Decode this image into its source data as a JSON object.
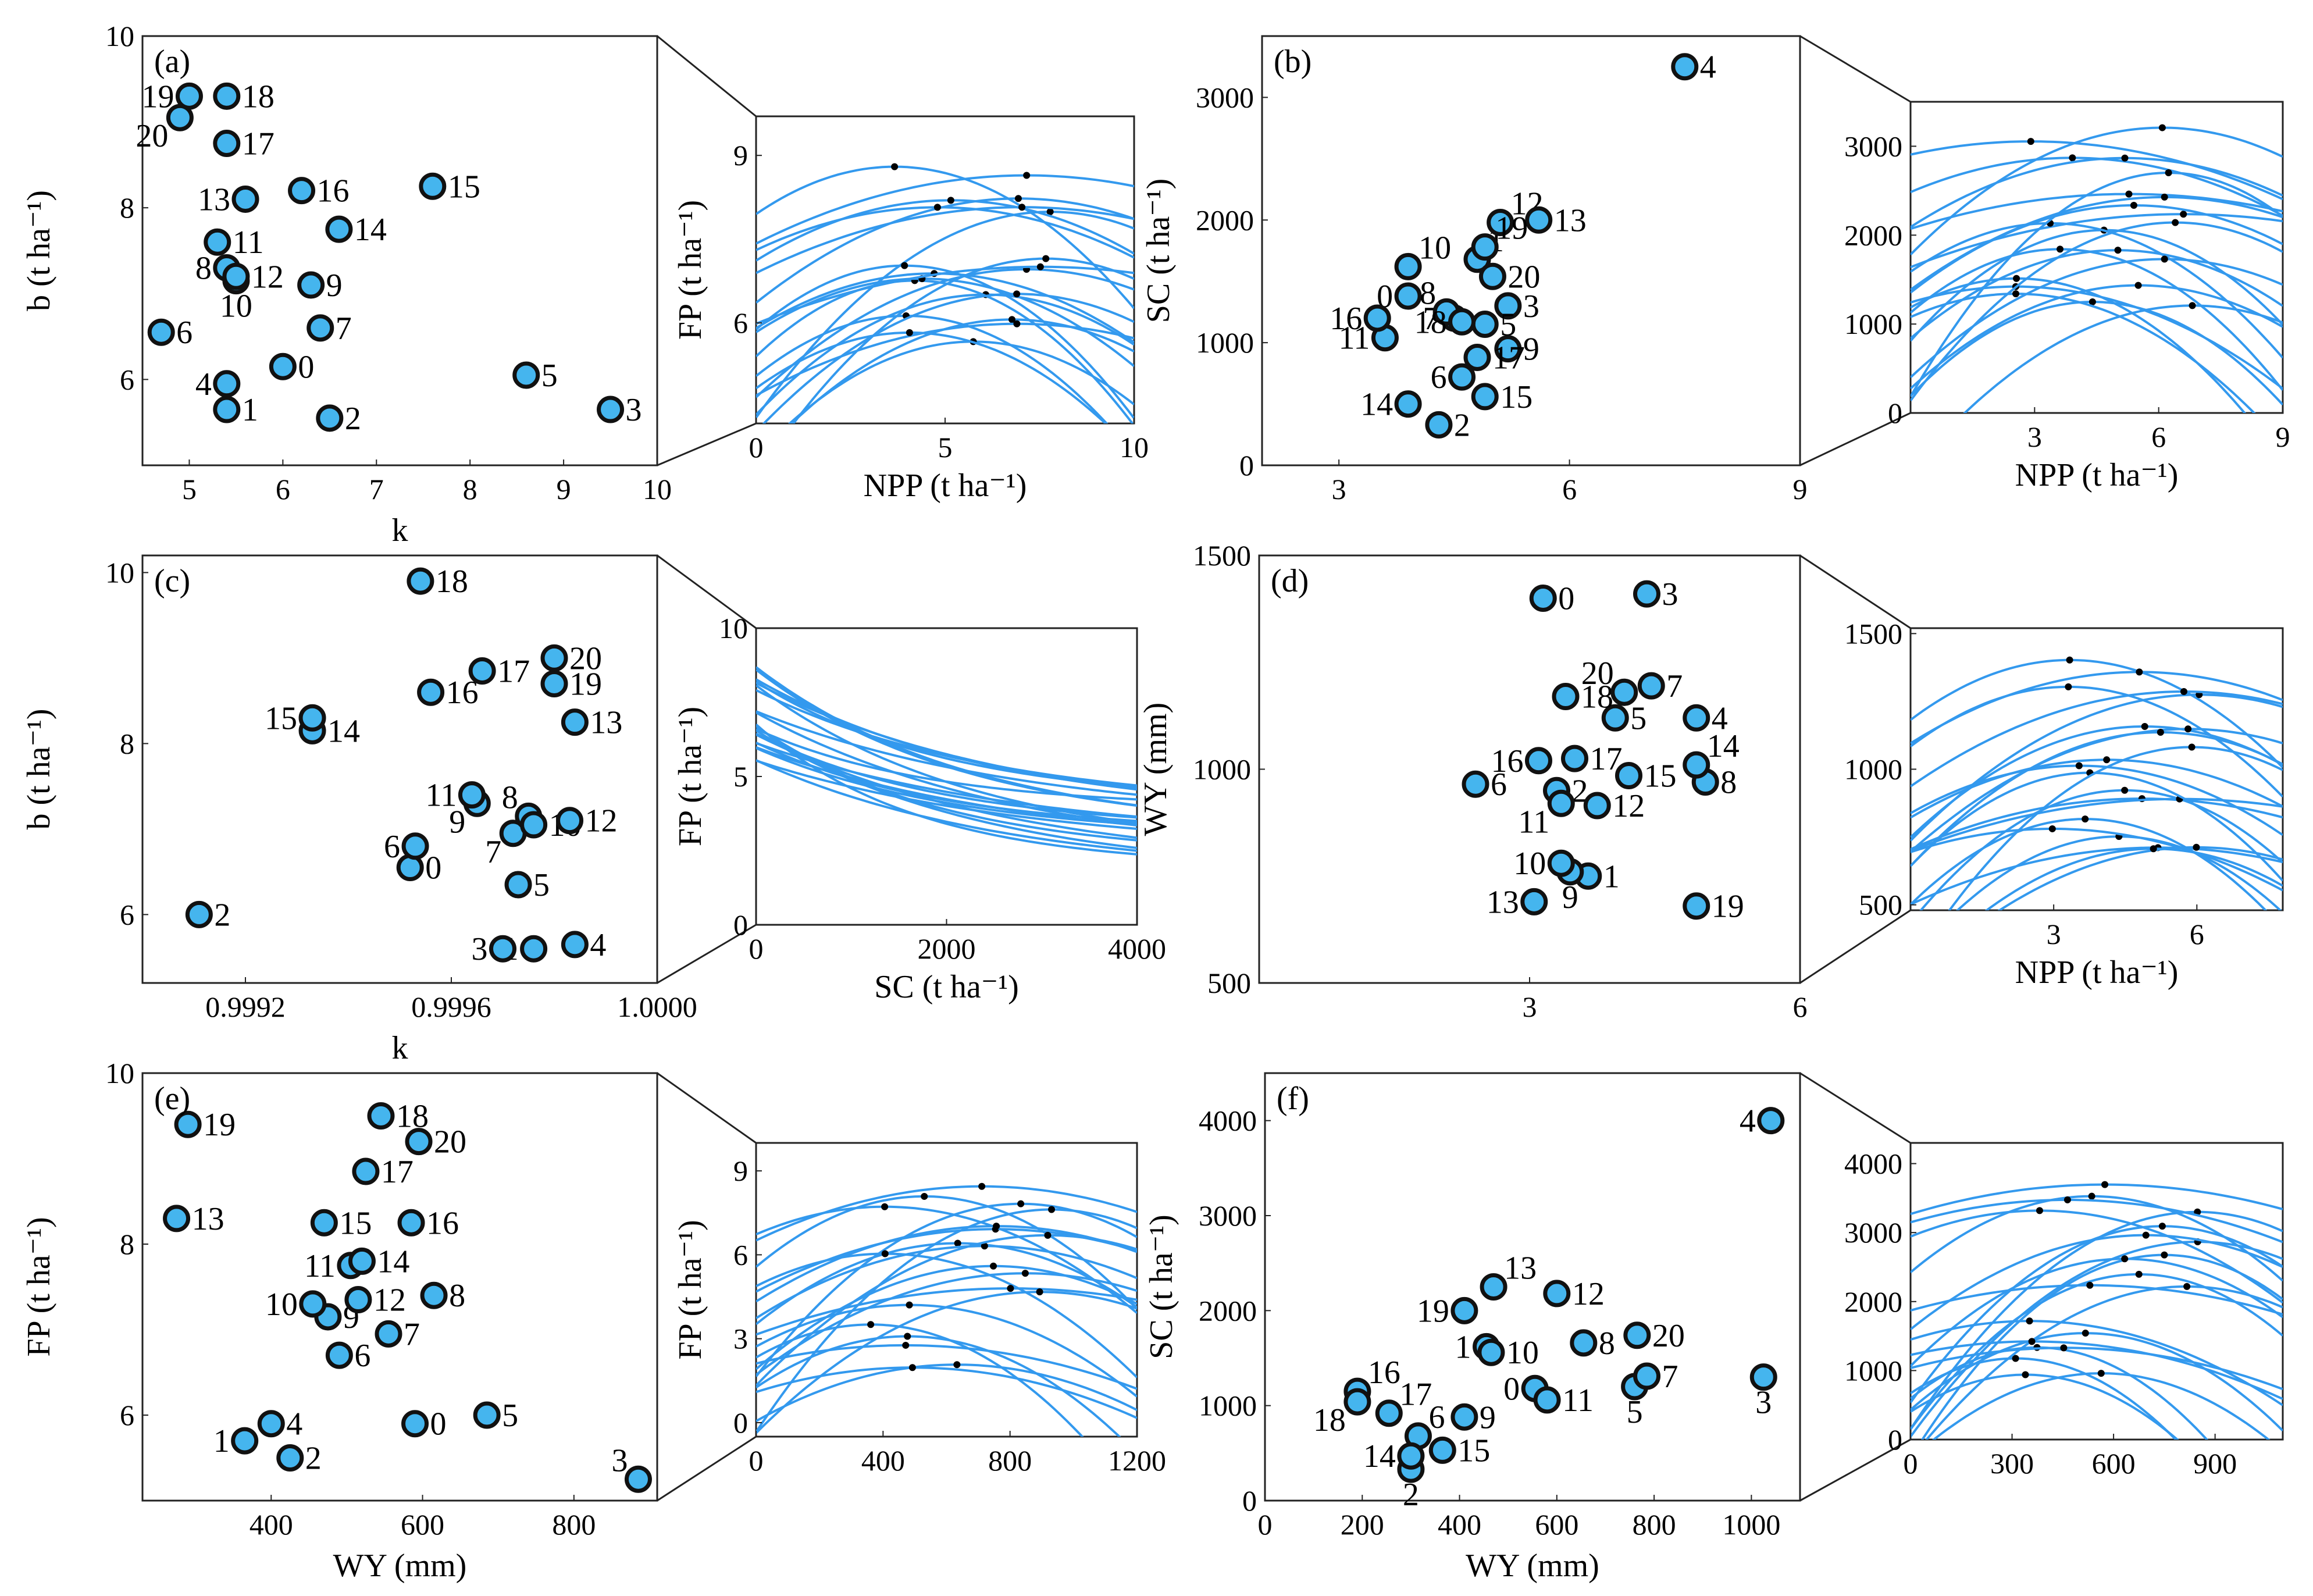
{
  "chart_data": [
    {
      "panel": "(a)",
      "type": "scatter",
      "xlabel": "k",
      "ylabel": "b (t ha⁻¹)",
      "xlim": [
        4.5,
        10
      ],
      "ylim": [
        5,
        10
      ],
      "xticks": [
        5,
        6,
        7,
        8,
        9,
        10
      ],
      "yticks": [
        6,
        8,
        10
      ],
      "points": [
        {
          "label": "0",
          "x": 6.0,
          "y": 6.15
        },
        {
          "label": "1",
          "x": 5.4,
          "y": 5.65
        },
        {
          "label": "2",
          "x": 6.5,
          "y": 5.55
        },
        {
          "label": "3",
          "x": 9.5,
          "y": 5.65
        },
        {
          "label": "4",
          "x": 5.4,
          "y": 5.95
        },
        {
          "label": "5",
          "x": 8.6,
          "y": 6.05
        },
        {
          "label": "6",
          "x": 4.7,
          "y": 6.55
        },
        {
          "label": "7",
          "x": 6.4,
          "y": 6.6
        },
        {
          "label": "8",
          "x": 5.4,
          "y": 7.3
        },
        {
          "label": "9",
          "x": 6.3,
          "y": 7.1
        },
        {
          "label": "10",
          "x": 5.5,
          "y": 7.15
        },
        {
          "label": "11",
          "x": 5.3,
          "y": 7.6
        },
        {
          "label": "12",
          "x": 5.5,
          "y": 7.2
        },
        {
          "label": "13",
          "x": 5.6,
          "y": 8.1
        },
        {
          "label": "14",
          "x": 6.6,
          "y": 7.75
        },
        {
          "label": "15",
          "x": 7.6,
          "y": 8.25
        },
        {
          "label": "16",
          "x": 6.2,
          "y": 8.2
        },
        {
          "label": "17",
          "x": 5.4,
          "y": 8.75
        },
        {
          "label": "18",
          "x": 5.4,
          "y": 9.3
        },
        {
          "label": "19",
          "x": 5.0,
          "y": 9.3
        },
        {
          "label": "20",
          "x": 4.9,
          "y": 9.05
        }
      ]
    },
    {
      "panel": "(a-inset)",
      "type": "line",
      "xlabel": "NPP (t ha⁻¹)",
      "ylabel": "FP (t ha⁻¹)",
      "xlim": [
        0,
        10
      ],
      "ylim": [
        4.2,
        9.7
      ],
      "xticks": [
        0,
        5,
        10
      ],
      "yticks": [
        6,
        9
      ]
    },
    {
      "panel": "(b)",
      "type": "scatter",
      "xlabel": "",
      "ylabel": "SC (t ha⁻¹)",
      "xlim": [
        2,
        9
      ],
      "ylim": [
        0,
        3500
      ],
      "xticks": [
        3,
        6,
        9
      ],
      "yticks": [
        0,
        1000,
        2000,
        3000
      ],
      "points": [
        {
          "label": "0",
          "x": 3.9,
          "y": 1380
        },
        {
          "label": "1",
          "x": 4.8,
          "y": 1680
        },
        {
          "label": "2",
          "x": 4.3,
          "y": 330
        },
        {
          "label": "3",
          "x": 5.2,
          "y": 1300
        },
        {
          "label": "4",
          "x": 7.5,
          "y": 3250
        },
        {
          "label": "5",
          "x": 4.9,
          "y": 1150
        },
        {
          "label": "6",
          "x": 4.6,
          "y": 720
        },
        {
          "label": "7",
          "x": 4.5,
          "y": 1200
        },
        {
          "label": "8",
          "x": 4.4,
          "y": 1250
        },
        {
          "label": "9",
          "x": 5.2,
          "y": 950
        },
        {
          "label": "10",
          "x": 3.9,
          "y": 1620
        },
        {
          "label": "11",
          "x": 3.6,
          "y": 1040
        },
        {
          "label": "12",
          "x": 5.1,
          "y": 1980
        },
        {
          "label": "13",
          "x": 5.6,
          "y": 2000
        },
        {
          "label": "14",
          "x": 3.9,
          "y": 500
        },
        {
          "label": "15",
          "x": 4.9,
          "y": 560
        },
        {
          "label": "16",
          "x": 3.5,
          "y": 1200
        },
        {
          "label": "17",
          "x": 4.8,
          "y": 880
        },
        {
          "label": "18",
          "x": 4.6,
          "y": 1170
        },
        {
          "label": "19",
          "x": 4.9,
          "y": 1780
        },
        {
          "label": "20",
          "x": 5.0,
          "y": 1540
        }
      ]
    },
    {
      "panel": "(b-inset)",
      "type": "line",
      "xlabel": "NPP (t ha⁻¹)",
      "ylabel": "",
      "xlim": [
        0,
        9
      ],
      "ylim": [
        0,
        3500
      ],
      "xticks": [
        3,
        6,
        9
      ],
      "yticks": [
        0,
        1000,
        2000,
        3000
      ]
    },
    {
      "panel": "(c)",
      "type": "scatter",
      "xlabel": "k",
      "ylabel": "b (t ha⁻¹)",
      "xlim": [
        0.999,
        1.0
      ],
      "ylim": [
        5.2,
        10.2
      ],
      "xticks": [
        "0.9992",
        "0.9996",
        "1.0000"
      ],
      "yticks": [
        6,
        8,
        10
      ],
      "points": [
        {
          "label": "0",
          "x": 0.99952,
          "y": 6.55
        },
        {
          "label": "1",
          "x": 0.99976,
          "y": 5.6
        },
        {
          "label": "2",
          "x": 0.99911,
          "y": 6.0
        },
        {
          "label": "3",
          "x": 0.9997,
          "y": 5.6
        },
        {
          "label": "4",
          "x": 0.99984,
          "y": 5.65
        },
        {
          "label": "5",
          "x": 0.99973,
          "y": 6.35
        },
        {
          "label": "6",
          "x": 0.99953,
          "y": 6.8
        },
        {
          "label": "7",
          "x": 0.99972,
          "y": 6.95
        },
        {
          "label": "8",
          "x": 0.99975,
          "y": 7.15
        },
        {
          "label": "9",
          "x": 0.99965,
          "y": 7.3
        },
        {
          "label": "10",
          "x": 0.99976,
          "y": 7.05
        },
        {
          "label": "11",
          "x": 0.99964,
          "y": 7.4
        },
        {
          "label": "12",
          "x": 0.99983,
          "y": 7.1
        },
        {
          "label": "13",
          "x": 0.99984,
          "y": 8.25
        },
        {
          "label": "14",
          "x": 0.99933,
          "y": 8.15
        },
        {
          "label": "15",
          "x": 0.99933,
          "y": 8.3
        },
        {
          "label": "16",
          "x": 0.99956,
          "y": 8.6
        },
        {
          "label": "17",
          "x": 0.99966,
          "y": 8.85
        },
        {
          "label": "18",
          "x": 0.99954,
          "y": 9.9
        },
        {
          "label": "19",
          "x": 0.9998,
          "y": 8.7
        },
        {
          "label": "20",
          "x": 0.9998,
          "y": 9.0
        }
      ]
    },
    {
      "panel": "(c-inset)",
      "type": "line",
      "xlabel": "SC (t ha⁻¹)",
      "ylabel": "FP (t ha⁻¹)",
      "xlim": [
        0,
        4000
      ],
      "ylim": [
        0,
        10
      ],
      "xticks": [
        0,
        2000,
        4000
      ],
      "yticks": [
        0,
        5,
        10
      ]
    },
    {
      "panel": "(d)",
      "type": "scatter",
      "xlabel": "",
      "ylabel": "WY (mm)",
      "xlim": [
        0,
        6
      ],
      "ylim": [
        500,
        1500
      ],
      "xticks": [
        3,
        6
      ],
      "yticks": [
        500,
        1000,
        1500
      ],
      "points": [
        {
          "label": "0",
          "x": 3.15,
          "y": 1400
        },
        {
          "label": "1",
          "x": 3.65,
          "y": 750
        },
        {
          "label": "2",
          "x": 3.3,
          "y": 950
        },
        {
          "label": "3",
          "x": 4.3,
          "y": 1410
        },
        {
          "label": "4",
          "x": 4.85,
          "y": 1120
        },
        {
          "label": "5",
          "x": 3.95,
          "y": 1120
        },
        {
          "label": "6",
          "x": 2.4,
          "y": 965
        },
        {
          "label": "7",
          "x": 4.35,
          "y": 1195
        },
        {
          "label": "8",
          "x": 4.95,
          "y": 970
        },
        {
          "label": "9",
          "x": 3.45,
          "y": 760
        },
        {
          "label": "10",
          "x": 3.35,
          "y": 780
        },
        {
          "label": "11",
          "x": 3.35,
          "y": 920
        },
        {
          "label": "12",
          "x": 3.75,
          "y": 915
        },
        {
          "label": "13",
          "x": 3.05,
          "y": 690
        },
        {
          "label": "14",
          "x": 4.85,
          "y": 1010
        },
        {
          "label": "15",
          "x": 4.1,
          "y": 985
        },
        {
          "label": "16",
          "x": 3.1,
          "y": 1020
        },
        {
          "label": "17",
          "x": 3.5,
          "y": 1025
        },
        {
          "label": "18",
          "x": 3.4,
          "y": 1170
        },
        {
          "label": "19",
          "x": 4.85,
          "y": 680
        },
        {
          "label": "20",
          "x": 4.05,
          "y": 1180
        }
      ]
    },
    {
      "panel": "(d-inset)",
      "type": "line",
      "xlabel": "NPP (t ha⁻¹)",
      "ylabel": "",
      "xlim": [
        0,
        7.8
      ],
      "ylim": [
        480,
        1520
      ],
      "xticks": [
        3,
        6
      ],
      "yticks": [
        500,
        1000,
        1500
      ]
    },
    {
      "panel": "(e)",
      "type": "scatter",
      "xlabel": "WY (mm)",
      "ylabel": "FP (t ha⁻¹)",
      "xlim": [
        230,
        910
      ],
      "ylim": [
        5,
        10
      ],
      "xticks": [
        400,
        600,
        800
      ],
      "yticks": [
        6,
        8,
        10
      ],
      "points": [
        {
          "label": "0",
          "x": 590,
          "y": 5.9
        },
        {
          "label": "1",
          "x": 365,
          "y": 5.7
        },
        {
          "label": "2",
          "x": 425,
          "y": 5.5
        },
        {
          "label": "3",
          "x": 885,
          "y": 5.25
        },
        {
          "label": "4",
          "x": 400,
          "y": 5.9
        },
        {
          "label": "5",
          "x": 685,
          "y": 6.0
        },
        {
          "label": "6",
          "x": 490,
          "y": 6.7
        },
        {
          "label": "7",
          "x": 555,
          "y": 6.95
        },
        {
          "label": "8",
          "x": 615,
          "y": 7.4
        },
        {
          "label": "9",
          "x": 475,
          "y": 7.15
        },
        {
          "label": "10",
          "x": 455,
          "y": 7.3
        },
        {
          "label": "11",
          "x": 505,
          "y": 7.75
        },
        {
          "label": "12",
          "x": 515,
          "y": 7.35
        },
        {
          "label": "13",
          "x": 275,
          "y": 8.3
        },
        {
          "label": "14",
          "x": 520,
          "y": 7.8
        },
        {
          "label": "15",
          "x": 470,
          "y": 8.25
        },
        {
          "label": "16",
          "x": 585,
          "y": 8.25
        },
        {
          "label": "17",
          "x": 525,
          "y": 8.85
        },
        {
          "label": "18",
          "x": 545,
          "y": 9.5
        },
        {
          "label": "19",
          "x": 290,
          "y": 9.4
        },
        {
          "label": "20",
          "x": 595,
          "y": 9.2
        }
      ]
    },
    {
      "panel": "(e-inset)",
      "type": "line",
      "xlabel": "",
      "ylabel": "FP (t ha⁻¹)",
      "xlim": [
        0,
        1200
      ],
      "ylim": [
        -0.5,
        10
      ],
      "xticks": [
        0,
        400,
        800,
        1200
      ],
      "yticks": [
        0,
        3,
        6,
        9
      ]
    },
    {
      "panel": "(f)",
      "type": "scatter",
      "xlabel": "WY (mm)",
      "ylabel": "SC (t ha⁻¹)",
      "xlim": [
        0,
        1100
      ],
      "ylim": [
        0,
        4500
      ],
      "xticks": [
        0,
        200,
        400,
        600,
        800,
        1000
      ],
      "yticks": [
        0,
        1000,
        2000,
        3000,
        4000
      ],
      "points": [
        {
          "label": "0",
          "x": 555,
          "y": 1180
        },
        {
          "label": "1",
          "x": 455,
          "y": 1620
        },
        {
          "label": "2",
          "x": 300,
          "y": 330
        },
        {
          "label": "3",
          "x": 1025,
          "y": 1300
        },
        {
          "label": "4",
          "x": 1040,
          "y": 4000
        },
        {
          "label": "5",
          "x": 760,
          "y": 1200
        },
        {
          "label": "6",
          "x": 315,
          "y": 680
        },
        {
          "label": "7",
          "x": 785,
          "y": 1310
        },
        {
          "label": "8",
          "x": 655,
          "y": 1660
        },
        {
          "label": "9",
          "x": 410,
          "y": 880
        },
        {
          "label": "10",
          "x": 465,
          "y": 1560
        },
        {
          "label": "11",
          "x": 580,
          "y": 1060
        },
        {
          "label": "12",
          "x": 600,
          "y": 2180
        },
        {
          "label": "13",
          "x": 470,
          "y": 2250
        },
        {
          "label": "14",
          "x": 300,
          "y": 470
        },
        {
          "label": "15",
          "x": 365,
          "y": 530
        },
        {
          "label": "16",
          "x": 190,
          "y": 1150
        },
        {
          "label": "17",
          "x": 255,
          "y": 920
        },
        {
          "label": "18",
          "x": 190,
          "y": 1040
        },
        {
          "label": "19",
          "x": 410,
          "y": 2000
        },
        {
          "label": "20",
          "x": 765,
          "y": 1740
        }
      ]
    },
    {
      "panel": "(f-inset)",
      "type": "line",
      "xlabel": "",
      "ylabel": "",
      "xlim": [
        0,
        1100
      ],
      "ylim": [
        0,
        4300
      ],
      "xticks": [
        0,
        300,
        600,
        900
      ],
      "yticks": [
        0,
        1000,
        2000,
        3000,
        4000
      ]
    }
  ]
}
